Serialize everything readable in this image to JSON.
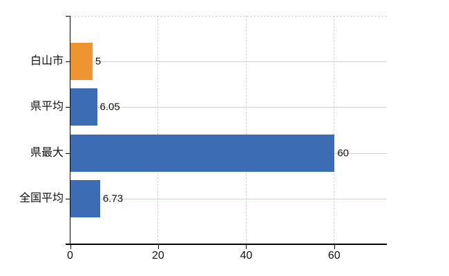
{
  "chart_data": {
    "type": "bar",
    "orientation": "horizontal",
    "title": "",
    "xlabel": "",
    "ylabel": "",
    "categories": [
      "白山市",
      "県平均",
      "県最大",
      "全国平均"
    ],
    "values": [
      5,
      6.05,
      60,
      6.73
    ],
    "value_labels": [
      "5",
      "6.05",
      "60",
      "6.73"
    ],
    "bar_colors": [
      "#ef9433",
      "#3c6cb4",
      "#3c6cb4",
      "#3c6cb4"
    ],
    "x_ticks": [
      0,
      20,
      40,
      60
    ],
    "x_tick_labels": [
      "0",
      "20",
      "40",
      "60"
    ],
    "xlim": [
      0,
      72
    ],
    "grid": true,
    "grid_style": {
      "vertical": "dashed",
      "horizontal": "solid"
    },
    "legend_position": "none"
  },
  "colors": {
    "orange_bar": "#ef9433",
    "blue_bar": "#3c6cb4",
    "axis": "#000000",
    "gridline_horizontal": "#ccd5cc",
    "gridline_vertical": "#d2d2d2",
    "background": "#ffffff",
    "text": "#111111"
  }
}
